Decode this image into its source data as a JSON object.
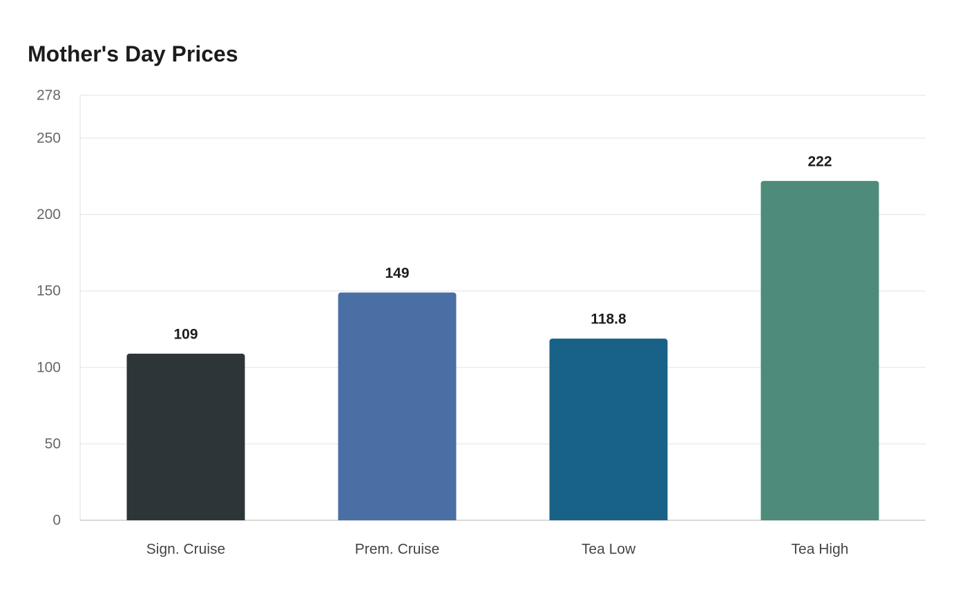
{
  "chart_data": {
    "type": "bar",
    "title": "Mother's Day Prices",
    "categories": [
      "Sign. Cruise",
      "Prem. Cruise",
      "Tea Low",
      "Tea High"
    ],
    "values": [
      109,
      149,
      118.8,
      222
    ],
    "value_labels": [
      "109",
      "149",
      "118.8",
      "222"
    ],
    "colors": [
      "#2e3538",
      "#4a6fa5",
      "#186187",
      "#4e8b7a"
    ],
    "xlabel": "",
    "ylabel": "",
    "ylim": [
      0,
      278
    ],
    "yticks": [
      0,
      50,
      100,
      150,
      200,
      250,
      278
    ],
    "grid": true,
    "legend": "none"
  }
}
